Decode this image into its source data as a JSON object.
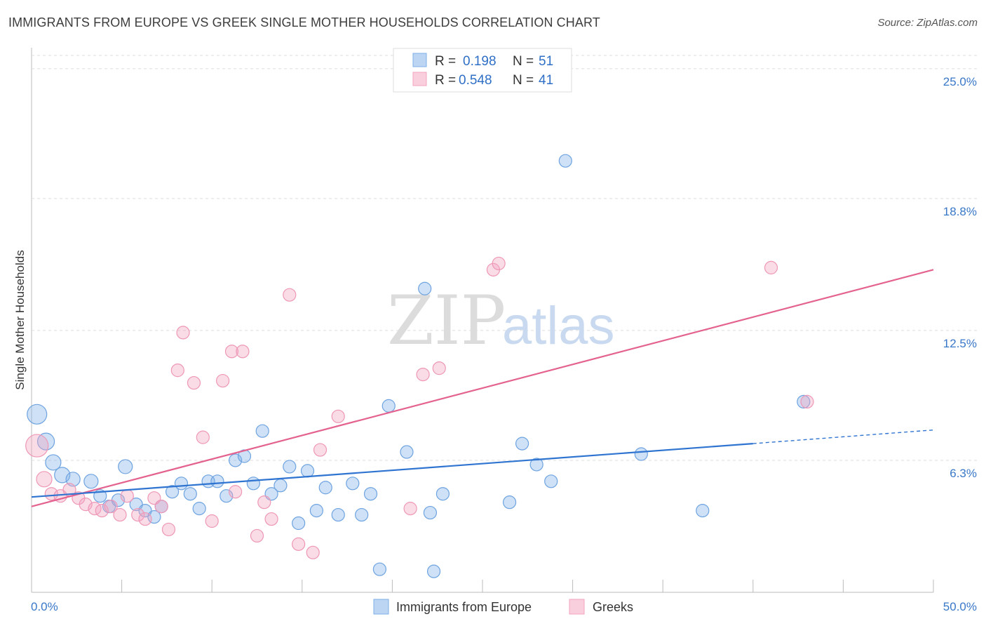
{
  "header": {
    "title": "IMMIGRANTS FROM EUROPE VS GREEK SINGLE MOTHER HOUSEHOLDS CORRELATION CHART",
    "source": "Source: ZipAtlas.com"
  },
  "legend": {
    "rows": [
      {
        "r_label": "R =",
        "r_value": "0.198",
        "n_label": "N =",
        "n_value": "51"
      },
      {
        "r_label": "R =",
        "r_value": "0.548",
        "n_label": "N =",
        "n_value": "41"
      }
    ]
  },
  "watermark": {
    "zip": "ZIP",
    "atlas": "atlas"
  },
  "colors": {
    "blue": "#7eb0e8",
    "pink": "#f3a3bf",
    "blue_line": "#2f74d0",
    "pink_line": "#e4628f"
  },
  "chart_data": {
    "type": "scatter",
    "xlabel": "",
    "ylabel": "Single Mother Households",
    "xlim": [
      0,
      50
    ],
    "ylim": [
      0,
      26
    ],
    "x_tick_labels": [
      "0.0%",
      "50.0%"
    ],
    "y_ticks": [
      6.3,
      12.5,
      18.8,
      25.0
    ],
    "y_tick_labels": [
      "6.3%",
      "12.5%",
      "18.8%",
      "25.0%"
    ],
    "grid": true,
    "series": [
      {
        "name": "Immigrants from Europe",
        "color": "#7eb0e8",
        "points": [
          [
            0.3,
            8.5,
            14
          ],
          [
            0.8,
            7.2,
            12
          ],
          [
            1.2,
            6.2,
            11
          ],
          [
            1.7,
            5.6,
            11
          ],
          [
            2.3,
            5.4,
            10
          ],
          [
            3.3,
            5.3,
            10
          ],
          [
            3.8,
            4.6,
            9
          ],
          [
            4.3,
            4.1,
            9
          ],
          [
            4.8,
            4.4,
            9
          ],
          [
            5.2,
            6.0,
            10
          ],
          [
            5.8,
            4.2,
            9
          ],
          [
            6.3,
            3.9,
            9
          ],
          [
            6.8,
            3.6,
            9
          ],
          [
            7.2,
            4.1,
            9
          ],
          [
            7.8,
            4.8,
            9
          ],
          [
            8.3,
            5.2,
            9
          ],
          [
            8.8,
            4.7,
            9
          ],
          [
            9.3,
            4.0,
            9
          ],
          [
            9.8,
            5.3,
            9
          ],
          [
            10.3,
            5.3,
            9
          ],
          [
            10.8,
            4.6,
            9
          ],
          [
            11.3,
            6.3,
            9
          ],
          [
            11.8,
            6.5,
            9
          ],
          [
            12.3,
            5.2,
            9
          ],
          [
            12.8,
            7.7,
            9
          ],
          [
            13.3,
            4.7,
            9
          ],
          [
            13.8,
            5.1,
            9
          ],
          [
            14.3,
            6.0,
            9
          ],
          [
            14.8,
            3.3,
            9
          ],
          [
            15.3,
            5.8,
            9
          ],
          [
            15.8,
            3.9,
            9
          ],
          [
            16.3,
            5.0,
            9
          ],
          [
            17.0,
            3.7,
            9
          ],
          [
            17.8,
            5.2,
            9
          ],
          [
            18.3,
            3.7,
            9
          ],
          [
            18.8,
            4.7,
            9
          ],
          [
            19.3,
            1.1,
            9
          ],
          [
            19.8,
            8.9,
            9
          ],
          [
            20.8,
            6.7,
            9
          ],
          [
            21.8,
            14.5,
            9
          ],
          [
            22.1,
            3.8,
            9
          ],
          [
            22.3,
            1.0,
            9
          ],
          [
            22.8,
            4.7,
            9
          ],
          [
            26.5,
            4.3,
            9
          ],
          [
            27.2,
            7.1,
            9
          ],
          [
            28.0,
            6.1,
            9
          ],
          [
            28.8,
            5.3,
            9
          ],
          [
            29.6,
            20.6,
            9
          ],
          [
            33.8,
            6.6,
            9
          ],
          [
            37.2,
            3.9,
            9
          ],
          [
            42.8,
            9.1,
            9
          ]
        ]
      },
      {
        "name": "Greeks",
        "color": "#f3a3bf",
        "points": [
          [
            0.3,
            7.0,
            16
          ],
          [
            0.7,
            5.4,
            11
          ],
          [
            1.1,
            4.7,
            9
          ],
          [
            1.6,
            4.6,
            9
          ],
          [
            2.1,
            4.9,
            9
          ],
          [
            2.6,
            4.5,
            9
          ],
          [
            3.0,
            4.2,
            9
          ],
          [
            3.5,
            4.0,
            9
          ],
          [
            3.9,
            3.9,
            9
          ],
          [
            4.4,
            4.1,
            9
          ],
          [
            4.9,
            3.7,
            9
          ],
          [
            5.3,
            4.6,
            9
          ],
          [
            5.9,
            3.7,
            9
          ],
          [
            6.3,
            3.5,
            9
          ],
          [
            6.8,
            4.5,
            9
          ],
          [
            7.2,
            4.1,
            9
          ],
          [
            7.6,
            3.0,
            9
          ],
          [
            8.1,
            10.6,
            9
          ],
          [
            8.4,
            12.4,
            9
          ],
          [
            9.0,
            10.0,
            9
          ],
          [
            9.5,
            7.4,
            9
          ],
          [
            10.0,
            3.4,
            9
          ],
          [
            10.6,
            10.1,
            9
          ],
          [
            11.1,
            11.5,
            9
          ],
          [
            11.3,
            4.8,
            9
          ],
          [
            11.7,
            11.5,
            9
          ],
          [
            12.5,
            2.7,
            9
          ],
          [
            12.9,
            4.3,
            9
          ],
          [
            13.3,
            3.5,
            9
          ],
          [
            14.3,
            14.2,
            9
          ],
          [
            14.8,
            2.3,
            9
          ],
          [
            15.6,
            1.9,
            9
          ],
          [
            16.0,
            6.8,
            9
          ],
          [
            17.0,
            8.4,
            9
          ],
          [
            21.0,
            4.0,
            9
          ],
          [
            21.7,
            10.4,
            9
          ],
          [
            22.6,
            10.7,
            9
          ],
          [
            25.6,
            15.4,
            9
          ],
          [
            25.9,
            15.7,
            9
          ],
          [
            41.0,
            15.5,
            9
          ],
          [
            43.0,
            9.1,
            9
          ]
        ]
      }
    ],
    "trendlines": [
      {
        "series": "Immigrants from Europe",
        "x0": 0,
        "y0": 4.55,
        "x1": 40,
        "y1": 7.1,
        "dash_to_x": 50,
        "dash_to_y": 7.75
      },
      {
        "series": "Greeks",
        "x0": 0,
        "y0": 4.1,
        "x1": 50,
        "y1": 15.4
      }
    ]
  }
}
